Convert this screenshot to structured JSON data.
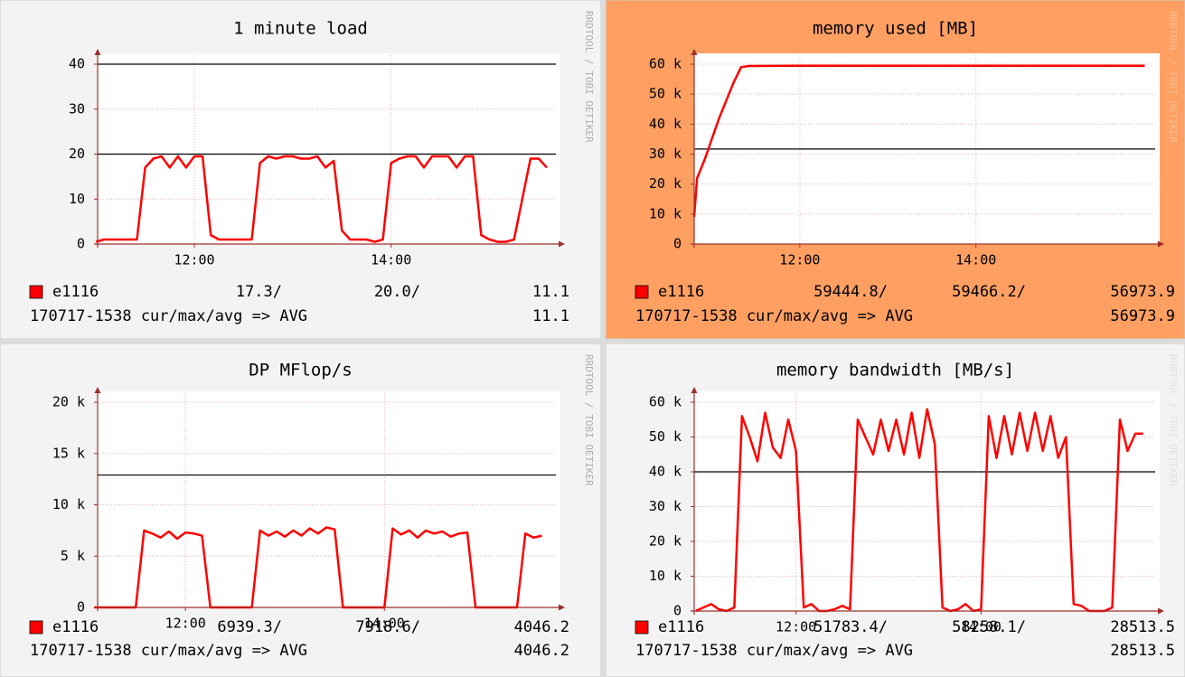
{
  "chart_data": [
    {
      "type": "line",
      "title": "1 minute load",
      "watermark": "RRDTOOL / TOBI OETIKER",
      "xlim": [
        661,
        935
      ],
      "xticks": [
        {
          "value": 720,
          "label": "12:00"
        },
        {
          "value": 840,
          "label": "14:00"
        }
      ],
      "ylim": [
        0,
        40
      ],
      "yticks": [
        0,
        10,
        20,
        30,
        40
      ],
      "hrules": [
        40,
        20
      ],
      "grid": true,
      "x": [
        660,
        665,
        670,
        675,
        680,
        685,
        690,
        695,
        700,
        705,
        710,
        715,
        720,
        725,
        730,
        735,
        740,
        745,
        750,
        755,
        760,
        765,
        770,
        775,
        780,
        785,
        790,
        795,
        800,
        805,
        810,
        815,
        820,
        825,
        830,
        835,
        840,
        845,
        850,
        855,
        860,
        865,
        870,
        875,
        880,
        885,
        890,
        895,
        900,
        905,
        910,
        915,
        920,
        925,
        930,
        935
      ],
      "series": [
        {
          "name": "e1116",
          "color": "#ff0000",
          "values": [
            0.5,
            1,
            1,
            1,
            1,
            1,
            17,
            19,
            19.5,
            17,
            19.5,
            17,
            19.5,
            19.5,
            2,
            1,
            1,
            1,
            1,
            1,
            18,
            19.5,
            19,
            19.5,
            19.5,
            19,
            19,
            19.5,
            17,
            18.5,
            3,
            1,
            1,
            1,
            0.5,
            1,
            18,
            19,
            19.5,
            19.5,
            17,
            19.5,
            19.5,
            19.5,
            17,
            19.5,
            19.5,
            2,
            1,
            0.5,
            0.5,
            1,
            10,
            19,
            19,
            17
          ]
        }
      ],
      "legend": {
        "cur": "17.3/",
        "max": "20.0/",
        "avg": "11.1",
        "note": "170717-1538 cur/max/avg => AVG",
        "note_value": "11.1"
      }
    },
    {
      "type": "line",
      "title": "memory used [MB]",
      "watermark": "RRDTOOL / TOBI OETIKER",
      "xlim": [
        648,
        956
      ],
      "xticks": [
        {
          "value": 720,
          "label": "12:00"
        },
        {
          "value": 840,
          "label": "14:00"
        }
      ],
      "ylim": [
        0,
        60000
      ],
      "yticks": [
        0,
        {
          "value": 10000,
          "label": "10 k"
        },
        {
          "value": 20000,
          "label": "20 k"
        },
        {
          "value": 30000,
          "label": "30 k"
        },
        {
          "value": 40000,
          "label": "40 k"
        },
        {
          "value": 50000,
          "label": "50 k"
        },
        {
          "value": 60000,
          "label": "60 k"
        }
      ],
      "hrules": [
        31700
      ],
      "grid": true,
      "x": [
        648,
        650,
        655,
        660,
        665,
        670,
        675,
        680,
        685,
        720,
        780,
        840,
        900,
        955
      ],
      "series": [
        {
          "name": "e1116",
          "color": "#ff0000",
          "values": [
            9000,
            22000,
            28000,
            35000,
            42000,
            48000,
            54000,
            59000,
            59400,
            59450,
            59460,
            59450,
            59460,
            59444.8
          ]
        }
      ],
      "legend": {
        "cur": "59444.8/",
        "max": "59466.2/",
        "avg": "56973.9",
        "note": "170717-1538 cur/max/avg => AVG",
        "note_value": "56973.9"
      }
    },
    {
      "type": "line",
      "title": "DP MFlop/s",
      "watermark": "RRDTOOL / TOBI OETIKER",
      "xlim": [
        667,
        938
      ],
      "xticks": [
        {
          "value": 720,
          "label": "12:00"
        },
        {
          "value": 840,
          "label": "14:00"
        }
      ],
      "ylim": [
        0,
        20000
      ],
      "yticks": [
        0,
        {
          "value": 5000,
          "label": "5 k"
        },
        {
          "value": 10000,
          "label": "10 k"
        },
        {
          "value": 15000,
          "label": "15 k"
        },
        {
          "value": 20000,
          "label": "20 k"
        }
      ],
      "hrules": [
        12900
      ],
      "grid": true,
      "x": [
        665,
        670,
        675,
        680,
        685,
        690,
        695,
        700,
        705,
        710,
        715,
        720,
        725,
        730,
        735,
        740,
        745,
        750,
        755,
        760,
        765,
        770,
        775,
        780,
        785,
        790,
        795,
        800,
        805,
        810,
        815,
        820,
        825,
        830,
        835,
        840,
        845,
        850,
        855,
        860,
        865,
        870,
        875,
        880,
        885,
        890,
        895,
        900,
        905,
        910,
        915,
        920,
        925,
        930,
        935
      ],
      "series": [
        {
          "name": "e1116",
          "color": "#ff0000",
          "values": [
            0,
            0,
            0,
            0,
            0,
            0,
            7500,
            7200,
            6800,
            7400,
            6700,
            7300,
            7200,
            7000,
            0,
            0,
            0,
            0,
            0,
            0,
            7500,
            7000,
            7400,
            6900,
            7500,
            7000,
            7700,
            7200,
            7800,
            7600,
            0,
            0,
            0,
            0,
            0,
            0,
            7700,
            7100,
            7500,
            6800,
            7500,
            7200,
            7400,
            6900,
            7200,
            7300,
            0,
            0,
            0,
            0,
            0,
            0,
            7200,
            6800,
            7000
          ]
        }
      ],
      "legend": {
        "cur": "6939.3/",
        "max": "7918.6/",
        "avg": "4046.2",
        "note": "170717-1538 cur/max/avg => AVG",
        "note_value": "4046.2"
      }
    },
    {
      "type": "line",
      "title": "memory bandwidth [MB/s]",
      "watermark": "RRDTOOL / TOBI OETIKER",
      "xlim": [
        654,
        947
      ],
      "xticks": [
        {
          "value": 720,
          "label": "12:00"
        },
        {
          "value": 840,
          "label": "14:00"
        }
      ],
      "ylim": [
        0,
        60000
      ],
      "yticks": [
        0,
        {
          "value": 10000,
          "label": "10 k"
        },
        {
          "value": 20000,
          "label": "20 k"
        },
        {
          "value": 30000,
          "label": "30 k"
        },
        {
          "value": 40000,
          "label": "40 k"
        },
        {
          "value": 50000,
          "label": "50 k"
        },
        {
          "value": 60000,
          "label": "60 k"
        }
      ],
      "hrules": [
        40000
      ],
      "grid": true,
      "x": [
        655,
        660,
        665,
        670,
        675,
        680,
        685,
        690,
        695,
        700,
        705,
        710,
        715,
        720,
        725,
        730,
        735,
        740,
        745,
        750,
        755,
        760,
        765,
        770,
        775,
        780,
        785,
        790,
        795,
        800,
        805,
        810,
        815,
        820,
        825,
        830,
        835,
        840,
        845,
        850,
        855,
        860,
        865,
        870,
        875,
        880,
        885,
        890,
        895,
        900,
        905,
        910,
        915,
        920,
        925,
        930,
        935,
        940,
        945
      ],
      "series": [
        {
          "name": "e1116",
          "color": "#ff0000",
          "values": [
            0,
            1000,
            2000,
            500,
            0,
            1000,
            56000,
            50000,
            43000,
            57000,
            47000,
            44000,
            55000,
            46000,
            1000,
            2000,
            0,
            0,
            500,
            1500,
            500,
            55000,
            50000,
            45000,
            55000,
            46000,
            55000,
            45000,
            57000,
            44000,
            58000,
            48000,
            1000,
            0,
            500,
            2000,
            0,
            500,
            56000,
            44000,
            56000,
            45000,
            57000,
            46000,
            57000,
            46000,
            56000,
            44000,
            50000,
            2000,
            1500,
            0,
            0,
            0,
            1000,
            55000,
            46000,
            51000,
            51000
          ]
        }
      ],
      "legend": {
        "cur": "51783.4/",
        "max": "58258.1/",
        "avg": "28513.5",
        "note": "170717-1538 cur/max/avg => AVG",
        "note_value": "28513.5"
      }
    }
  ]
}
